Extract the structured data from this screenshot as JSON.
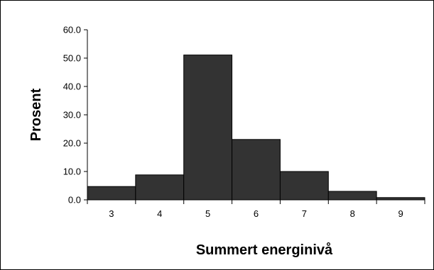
{
  "chart_data": {
    "type": "bar",
    "categories": [
      "3",
      "4",
      "5",
      "6",
      "7",
      "8",
      "9"
    ],
    "values": [
      4.7,
      8.8,
      51.1,
      21.3,
      10.0,
      3.0,
      0.8
    ],
    "xlabel": "Summert energinivå",
    "ylabel": "Prosent",
    "ylim": [
      0,
      60
    ],
    "yticks": [
      "0.0",
      "10.0",
      "20.0",
      "30.0",
      "40.0",
      "50.0",
      "60.0"
    ],
    "grid": false,
    "legend": "none",
    "colors": {
      "bar_fill": "#333333",
      "bar_stroke": "#000000",
      "axis": "#000000"
    }
  }
}
